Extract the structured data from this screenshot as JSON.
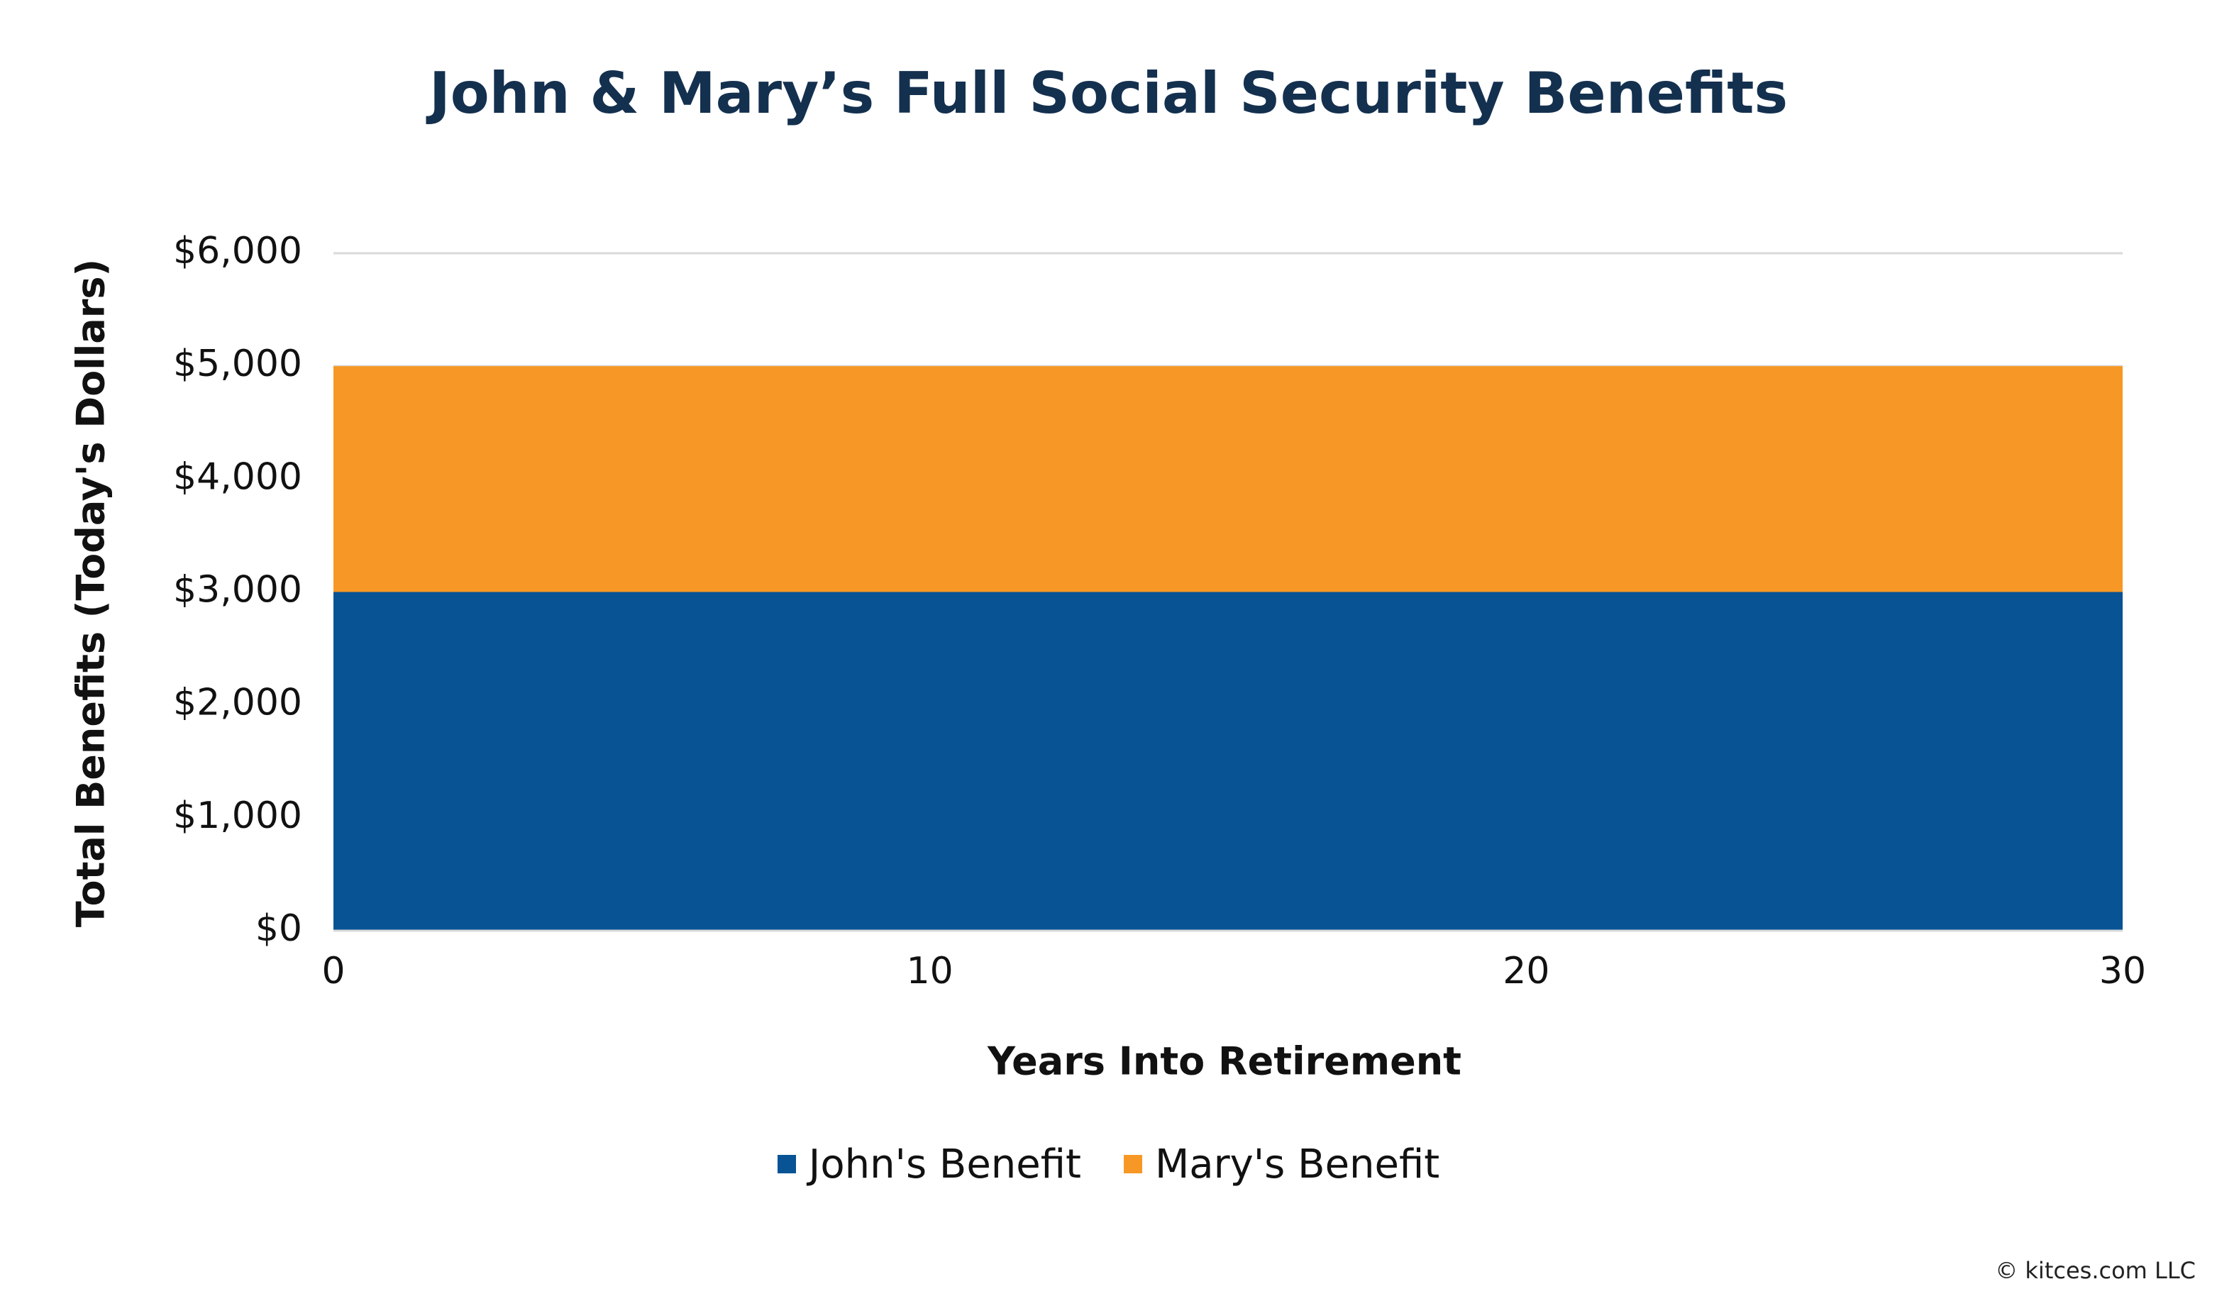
{
  "chart_data": {
    "type": "area",
    "stacked": true,
    "title": "John & Mary’s Full Social Security Benefits",
    "xlabel": "Years Into Retirement",
    "ylabel": "Total Benefits (Today's Dollars)",
    "x": [
      0,
      30
    ],
    "xlim": [
      0,
      30
    ],
    "ylim": [
      0,
      6000
    ],
    "xticks": [
      0,
      10,
      20,
      30
    ],
    "yticks": [
      0,
      1000,
      2000,
      3000,
      4000,
      5000,
      6000
    ],
    "xtick_labels": [
      "0",
      "10",
      "20",
      "30"
    ],
    "ytick_labels": [
      "$0",
      "$1,000",
      "$2,000",
      "$3,000",
      "$4,000",
      "$5,000",
      "$6,000"
    ],
    "series": [
      {
        "name": "John's Benefit",
        "values": [
          3000,
          3000
        ],
        "color": "#075394"
      },
      {
        "name": "Mary's Benefit",
        "values": [
          2000,
          2000
        ],
        "color": "#f79826"
      }
    ],
    "grid": "horizontal",
    "gridline_color": "#d9d9d9",
    "legend_placement": "bottom"
  },
  "footer": {
    "credit": "© kitces.com LLC"
  }
}
